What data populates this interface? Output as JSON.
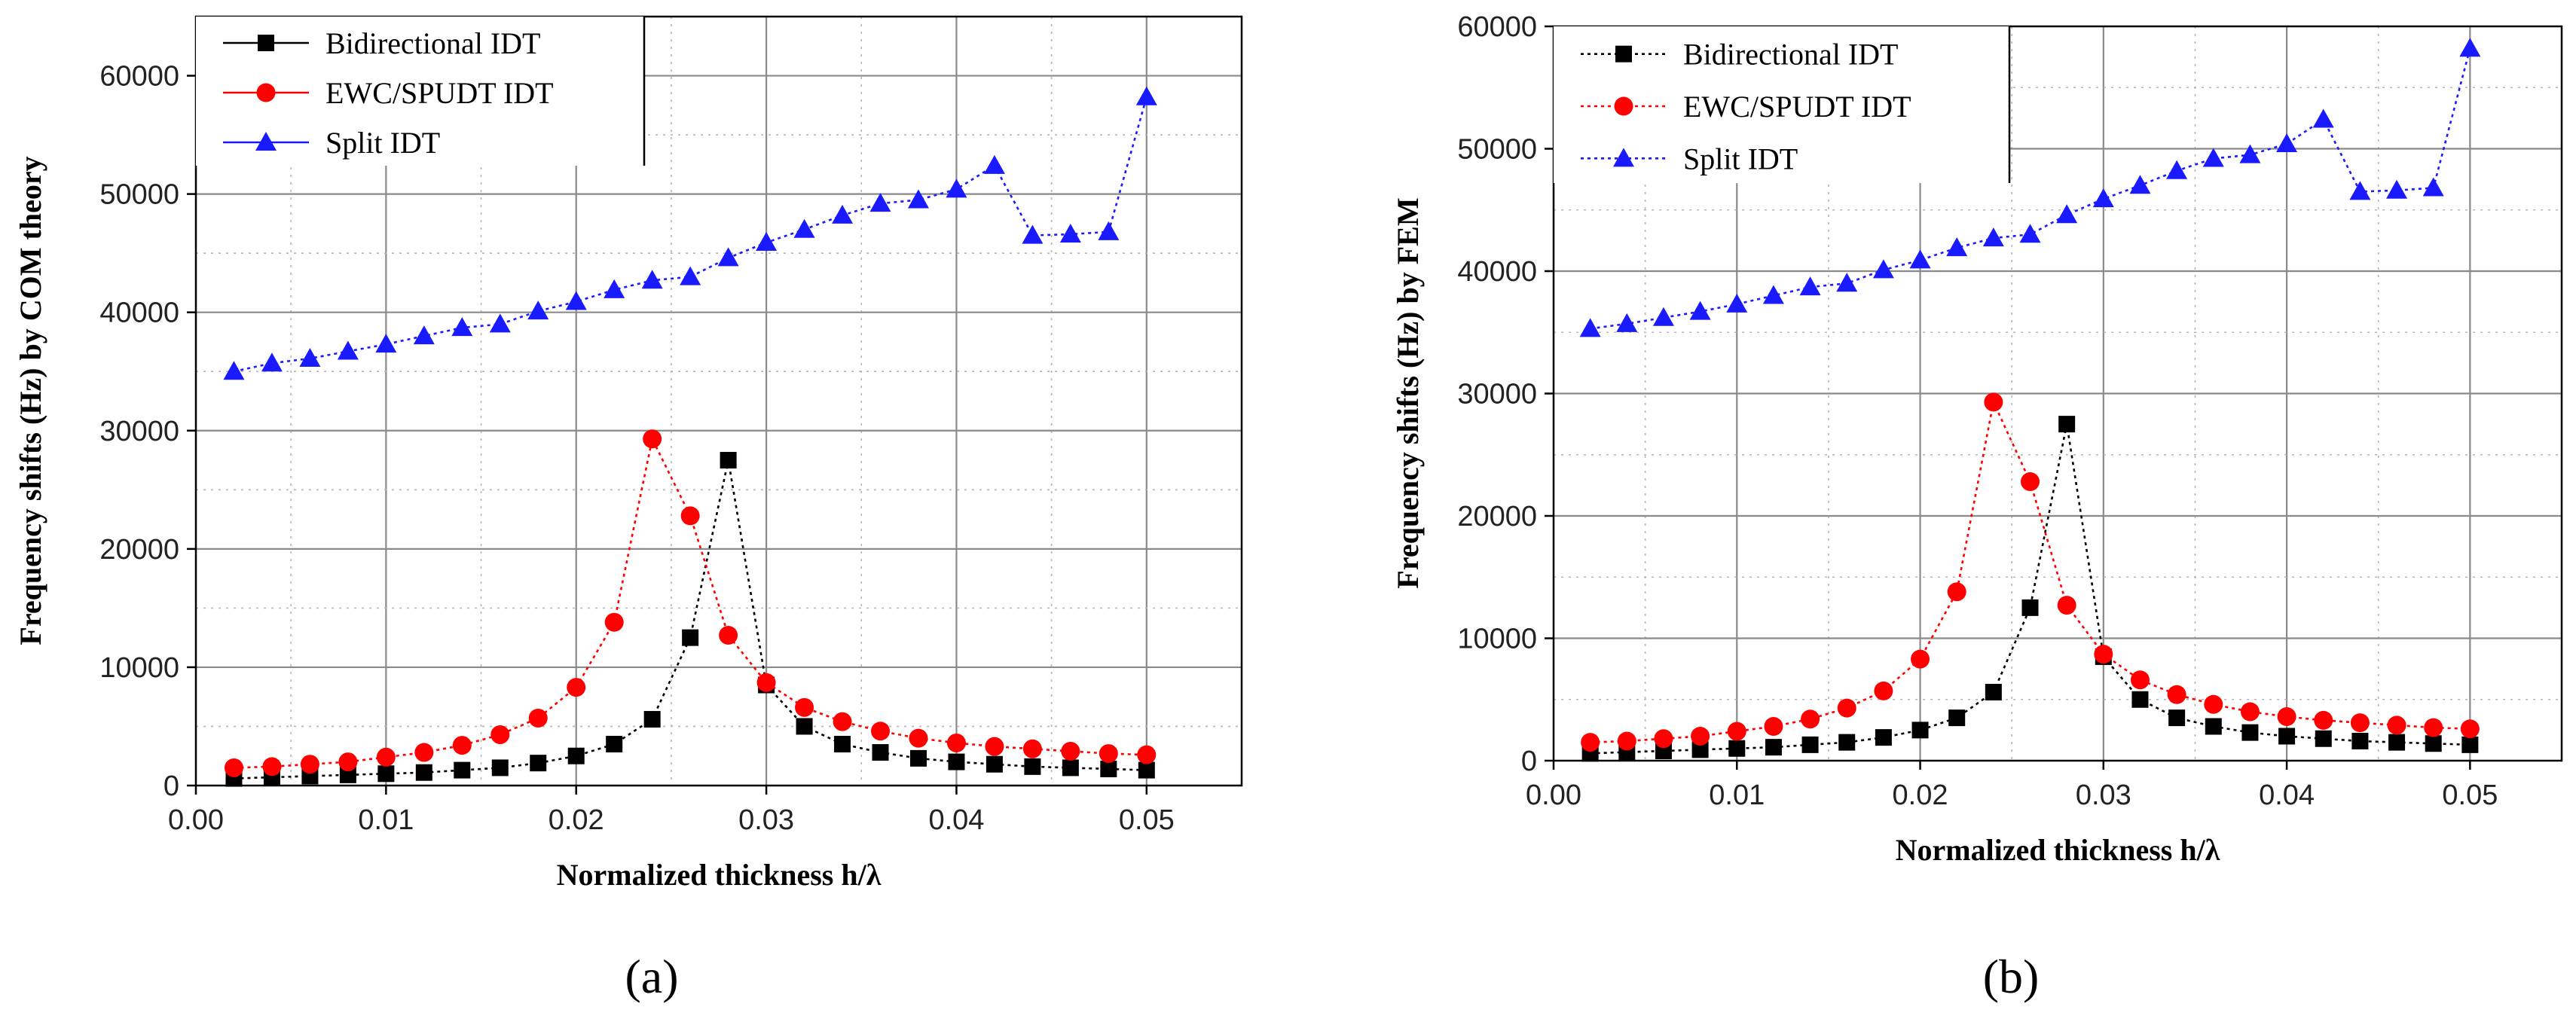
{
  "chart_data": [
    {
      "type": "line",
      "panel_label": "(a)",
      "xlabel": "Normalized thickness h/λ",
      "ylabel": "Frequency shifts (Hz) by COM theory",
      "xlim": [
        0.0,
        0.055
      ],
      "ylim": [
        0,
        65000
      ],
      "xticks": [
        "0.00",
        "0.01",
        "0.02",
        "0.03",
        "0.04",
        "0.05"
      ],
      "yticks": [
        "0",
        "10000",
        "20000",
        "30000",
        "40000",
        "50000",
        "60000"
      ],
      "x": [
        0.002,
        0.004,
        0.006,
        0.008,
        0.01,
        0.012,
        0.014,
        0.016,
        0.018,
        0.02,
        0.022,
        0.024,
        0.026,
        0.028,
        0.03,
        0.032,
        0.034,
        0.036,
        0.038,
        0.04,
        0.042,
        0.044,
        0.046,
        0.048,
        0.05
      ],
      "series": [
        {
          "name": "Bidirectional IDT",
          "color": "#000000",
          "marker": "square",
          "values": [
            600,
            700,
            800,
            900,
            1000,
            1100,
            1300,
            1500,
            1900,
            2500,
            3500,
            5600,
            12500,
            27500,
            8500,
            5000,
            3500,
            2800,
            2300,
            2000,
            1800,
            1600,
            1500,
            1400,
            1300
          ]
        },
        {
          "name": "EWC/SPUDT IDT",
          "color": "#ff0000",
          "marker": "circle",
          "values": [
            1500,
            1600,
            1800,
            2000,
            2400,
            2800,
            3400,
            4300,
            5700,
            8300,
            13800,
            29300,
            22800,
            12700,
            8700,
            6600,
            5400,
            4600,
            4000,
            3600,
            3300,
            3100,
            2900,
            2700,
            2600
          ]
        },
        {
          "name": "Split IDT",
          "color": "#1a1aff",
          "marker": "triangle",
          "values": [
            35000,
            35700,
            36100,
            36700,
            37300,
            38000,
            38700,
            39000,
            40100,
            40900,
            41900,
            42700,
            43000,
            44600,
            45900,
            47000,
            48200,
            49200,
            49500,
            50400,
            52400,
            46500,
            46600,
            46800,
            58200
          ]
        }
      ]
    },
    {
      "type": "line",
      "panel_label": "(b)",
      "xlabel": "Normalized thickness h/λ",
      "ylabel": "Frequency shifts (Hz) by FEM",
      "xlim": [
        0.0,
        0.055
      ],
      "ylim": [
        0,
        60000
      ],
      "xticks": [
        "0.00",
        "0.01",
        "0.02",
        "0.03",
        "0.04",
        "0.05"
      ],
      "yticks": [
        "0",
        "10000",
        "20000",
        "30000",
        "40000",
        "50000",
        "60000"
      ],
      "x": [
        0.002,
        0.004,
        0.006,
        0.008,
        0.01,
        0.012,
        0.014,
        0.016,
        0.018,
        0.02,
        0.022,
        0.024,
        0.026,
        0.028,
        0.03,
        0.032,
        0.034,
        0.036,
        0.038,
        0.04,
        0.042,
        0.044,
        0.046,
        0.048,
        0.05
      ],
      "series": [
        {
          "name": "Bidirectional IDT",
          "color": "#000000",
          "marker": "square",
          "values": [
            600,
            700,
            800,
            900,
            1000,
            1100,
            1300,
            1500,
            1900,
            2500,
            3500,
            5600,
            12500,
            27500,
            8500,
            5000,
            3500,
            2800,
            2300,
            2000,
            1800,
            1600,
            1500,
            1400,
            1300
          ]
        },
        {
          "name": "EWC/SPUDT IDT",
          "color": "#ff0000",
          "marker": "circle",
          "values": [
            1500,
            1600,
            1800,
            2000,
            2400,
            2800,
            3400,
            4300,
            5700,
            8300,
            13800,
            29300,
            22800,
            12700,
            8700,
            6600,
            5400,
            4600,
            4000,
            3600,
            3300,
            3100,
            2900,
            2700,
            2600
          ]
        },
        {
          "name": "Split IDT",
          "color": "#1a1aff",
          "marker": "triangle",
          "values": [
            35300,
            35700,
            36200,
            36700,
            37300,
            38000,
            38700,
            39000,
            40100,
            40900,
            41900,
            42700,
            43000,
            44600,
            45900,
            47000,
            48200,
            49200,
            49500,
            50400,
            52400,
            46500,
            46600,
            46800,
            58200
          ]
        }
      ]
    }
  ]
}
